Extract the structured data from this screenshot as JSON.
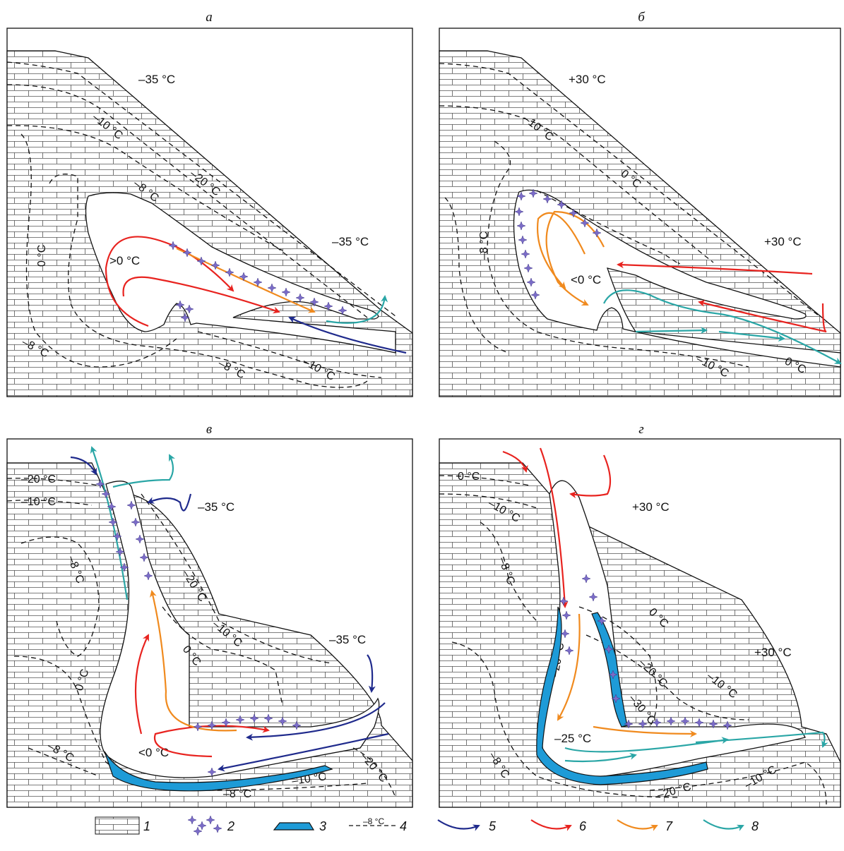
{
  "panels": [
    {
      "id": "a",
      "title": "а",
      "air_labels": [
        "–35 °C",
        "–35 °C"
      ],
      "cave_label": ">0 °C",
      "isotherms": [
        "–10 °C",
        "–20 °C",
        "–8 °C",
        "0 °C",
        "–8 °C",
        "–8 °C",
        "–10 °C"
      ]
    },
    {
      "id": "b",
      "title": "б",
      "air_labels": [
        "+30 °C",
        "+30 °C"
      ],
      "cave_label": "<0 °C",
      "isotherms": [
        "–10 °C",
        "0 °C",
        "–8 °C",
        "–10 °C",
        "0 °C"
      ]
    },
    {
      "id": "v",
      "title": "в",
      "air_labels": [
        "–35 °C",
        "–35 °C"
      ],
      "cave_label": "<0 °C",
      "isotherms": [
        "–20 °C",
        "–10 °C",
        "–8 °C",
        "–20 °C",
        "–10 °C",
        "0 °C",
        "0 °C",
        "–8 °C",
        "–8 °C",
        "–10 °C",
        "–20 °C"
      ]
    },
    {
      "id": "g",
      "title": "г",
      "air_labels": [
        "+30 °C",
        "+30 °C"
      ],
      "cave_label": "–25 °C",
      "isotherms": [
        "0 °C",
        "–10 °C",
        "–8 °C",
        "0 °C",
        "–20 °C",
        "–30 °C",
        "–10 °C",
        "–20 °C",
        "–20 °C",
        "–10 °C",
        "–8 °C"
      ]
    }
  ],
  "legend": [
    {
      "num": "1",
      "name": "limestone-rock"
    },
    {
      "num": "2",
      "name": "hoarfrost-crystals"
    },
    {
      "num": "3",
      "name": "ice-layer"
    },
    {
      "num": "4",
      "name": "isotherm",
      "sample": "–8 °C"
    },
    {
      "num": "5",
      "name": "cold-air-arrow",
      "color": "#1f2a8c"
    },
    {
      "num": "6",
      "name": "warm-air-arrow",
      "color": "#e8231f"
    },
    {
      "num": "7",
      "name": "cooling-air-arrow",
      "color": "#f08a1e"
    },
    {
      "num": "8",
      "name": "outflow-air-arrow",
      "color": "#2aa6a6"
    }
  ],
  "colors": {
    "cold": "#1f2a8c",
    "warm": "#e8231f",
    "orange": "#f08a1e",
    "teal": "#2aa6a6",
    "ice": "#1e9bd7",
    "frost": "#7b6cc8"
  }
}
